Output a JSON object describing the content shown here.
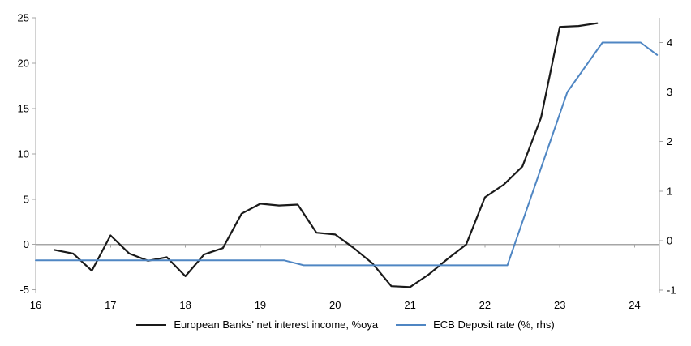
{
  "chart_data": {
    "type": "line",
    "title": "",
    "axis_color": "#a6a6a6",
    "text_color": "#000000",
    "grid": "zero-line-only",
    "legend_position": "bottom-center",
    "x_axis": {
      "ticks": [
        16,
        17,
        18,
        19,
        20,
        21,
        22,
        23,
        24
      ],
      "range": [
        16,
        24.33
      ]
    },
    "left_axis": {
      "ticks": [
        -5,
        0,
        5,
        10,
        15,
        20,
        25
      ],
      "range": [
        -5.3,
        25
      ]
    },
    "right_axis": {
      "ticks": [
        -1,
        0,
        1,
        2,
        3,
        4
      ],
      "range": [
        -1.05,
        4.5
      ]
    },
    "series": [
      {
        "name": "European Banks' net interest income, %oya",
        "axis": "left",
        "color": "#1a1a1a",
        "width": 2.2,
        "points": [
          [
            16.25,
            -0.6
          ],
          [
            16.5,
            -1.0
          ],
          [
            16.75,
            -2.9
          ],
          [
            17.0,
            1.0
          ],
          [
            17.25,
            -1.0
          ],
          [
            17.5,
            -1.8
          ],
          [
            17.75,
            -1.4
          ],
          [
            18.0,
            -3.5
          ],
          [
            18.25,
            -1.1
          ],
          [
            18.5,
            -0.4
          ],
          [
            18.75,
            3.4
          ],
          [
            19.0,
            4.5
          ],
          [
            19.25,
            4.3
          ],
          [
            19.5,
            4.4
          ],
          [
            19.75,
            1.3
          ],
          [
            20.0,
            1.1
          ],
          [
            20.25,
            -0.4
          ],
          [
            20.5,
            -2.1
          ],
          [
            20.75,
            -4.6
          ],
          [
            21.0,
            -4.7
          ],
          [
            21.25,
            -3.3
          ],
          [
            21.5,
            -1.6
          ],
          [
            21.75,
            0.0
          ],
          [
            22.0,
            5.2
          ],
          [
            22.25,
            6.6
          ],
          [
            22.5,
            8.6
          ],
          [
            22.75,
            14.0
          ],
          [
            23.0,
            24.0
          ],
          [
            23.25,
            24.1
          ],
          [
            23.5,
            24.4
          ]
        ]
      },
      {
        "name": "ECB Deposit rate (%, rhs)",
        "axis": "right",
        "color": "#4f86c3",
        "width": 2,
        "points": [
          [
            16.0,
            -0.4
          ],
          [
            19.32,
            -0.4
          ],
          [
            19.58,
            -0.5
          ],
          [
            22.3,
            -0.5
          ],
          [
            23.1,
            3.0
          ],
          [
            23.57,
            4.0
          ],
          [
            24.08,
            4.0
          ],
          [
            24.3,
            3.75
          ]
        ]
      }
    ]
  }
}
